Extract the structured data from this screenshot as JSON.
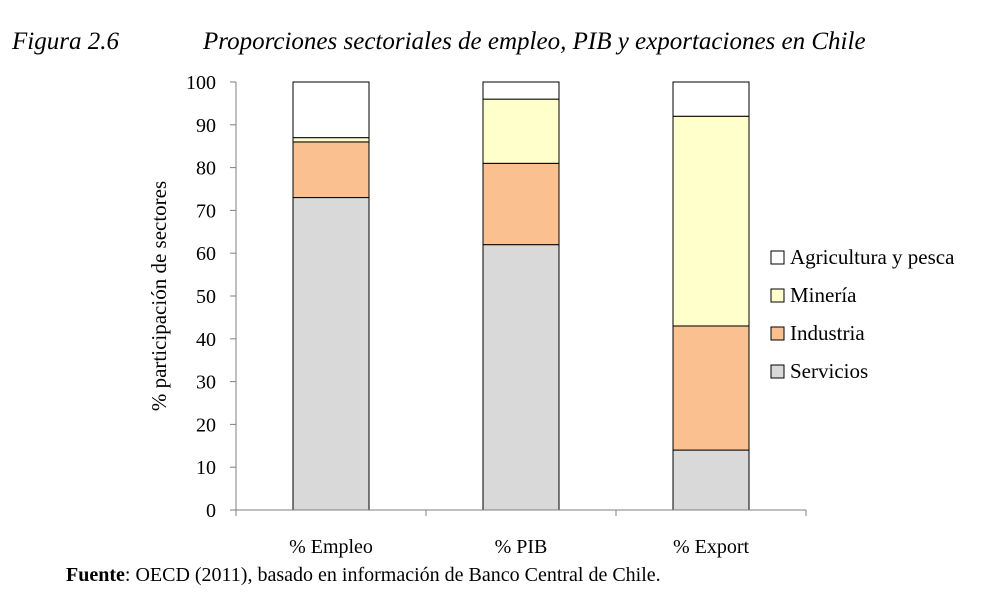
{
  "figure": {
    "number": "Figura 2.6",
    "title": "Proporciones sectoriales de empleo, PIB y exportaciones en Chile"
  },
  "source": {
    "label": "Fuente",
    "text": ": OECD (2011), basado en información de Banco Central de Chile."
  },
  "chart_data": {
    "type": "bar",
    "stacked": true,
    "categories": [
      "% Empleo",
      "% PIB",
      "% Export"
    ],
    "ylabel": "% participación de sectores",
    "xlabel": "",
    "ylim": [
      0,
      100
    ],
    "yticks": [
      0,
      10,
      20,
      30,
      40,
      50,
      60,
      70,
      80,
      90,
      100
    ],
    "grid": false,
    "legend_position": "right",
    "series": [
      {
        "name": "Servicios",
        "values": [
          73,
          62,
          14
        ],
        "color": "#d9d9d9"
      },
      {
        "name": "Industria",
        "values": [
          13,
          19,
          29
        ],
        "color": "#fac090"
      },
      {
        "name": "Minería",
        "values": [
          1,
          15,
          49
        ],
        "color": "#ffffcc"
      },
      {
        "name": "Agricultura y pesca",
        "values": [
          13,
          4,
          8
        ],
        "color": "#ffffff"
      }
    ]
  }
}
